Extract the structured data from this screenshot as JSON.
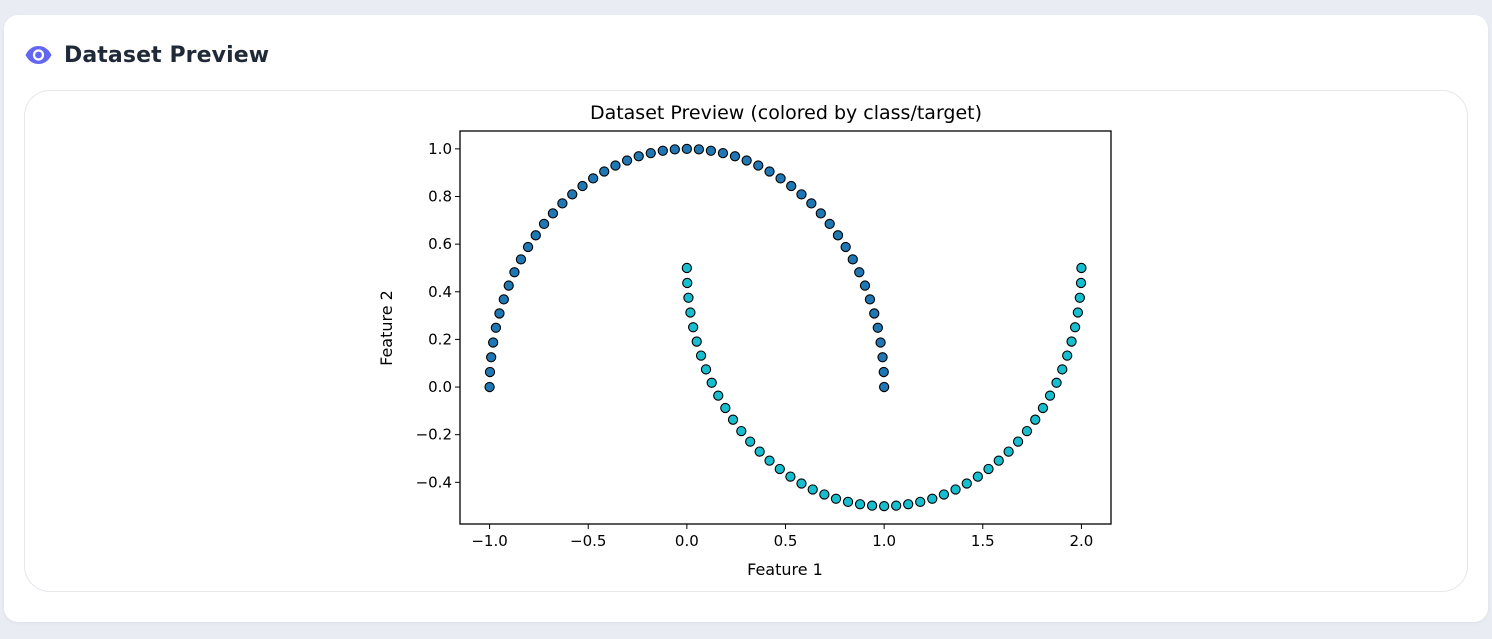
{
  "header": {
    "title": "Dataset Preview",
    "icon": "eye-icon",
    "icon_color": "#6366f1"
  },
  "chart_data": {
    "type": "scatter",
    "title": "Dataset Preview (colored by class/target)",
    "xlabel": "Feature 1",
    "ylabel": "Feature 2",
    "xlim": [
      -1.15,
      2.15
    ],
    "ylim": [
      -0.575,
      1.075
    ],
    "xticks": [
      -1.0,
      -0.5,
      0.0,
      0.5,
      1.0,
      1.5,
      2.0
    ],
    "xtick_labels": [
      "−1.0",
      "−0.5",
      "0.0",
      "0.5",
      "1.0",
      "1.5",
      "2.0"
    ],
    "yticks": [
      -0.4,
      -0.2,
      0.0,
      0.2,
      0.4,
      0.6,
      0.8,
      1.0
    ],
    "ytick_labels": [
      "−0.4",
      "−0.2",
      "0.0",
      "0.2",
      "0.4",
      "0.6",
      "0.8",
      "1.0"
    ],
    "grid": false,
    "legend": false,
    "colors": {
      "class_0": "#1f77b4",
      "class_1": "#17becf",
      "marker_edge": "#000000"
    },
    "series": [
      {
        "x": [
          1.0,
          0.998,
          0.992,
          0.982,
          0.968,
          0.95,
          0.928,
          0.903,
          0.874,
          0.841,
          0.805,
          0.766,
          0.724,
          0.679,
          0.631,
          0.581,
          0.529,
          0.475,
          0.419,
          0.362,
          0.303,
          0.244,
          0.183,
          0.122,
          0.061,
          0.0,
          -0.061,
          -0.122,
          -0.183,
          -0.244,
          -0.303,
          -0.362,
          -0.419,
          -0.475,
          -0.529,
          -0.581,
          -0.631,
          -0.679,
          -0.724,
          -0.766,
          -0.805,
          -0.841,
          -0.874,
          -0.903,
          -0.928,
          -0.95,
          -0.968,
          -0.982,
          -0.992,
          -0.998,
          -1.0
        ],
        "y": [
          0.0,
          0.063,
          0.125,
          0.187,
          0.249,
          0.309,
          0.368,
          0.426,
          0.482,
          0.536,
          0.588,
          0.637,
          0.685,
          0.729,
          0.771,
          0.809,
          0.844,
          0.876,
          0.905,
          0.93,
          0.951,
          0.969,
          0.982,
          0.992,
          0.998,
          1.0,
          0.998,
          0.992,
          0.982,
          0.969,
          0.951,
          0.93,
          0.905,
          0.876,
          0.844,
          0.809,
          0.771,
          0.729,
          0.685,
          0.637,
          0.588,
          0.536,
          0.482,
          0.426,
          0.368,
          0.309,
          0.249,
          0.187,
          0.125,
          0.063,
          0.0
        ]
      },
      {
        "x": [
          0.0,
          0.002,
          0.008,
          0.018,
          0.032,
          0.05,
          0.072,
          0.097,
          0.126,
          0.159,
          0.195,
          0.234,
          0.276,
          0.321,
          0.369,
          0.419,
          0.471,
          0.525,
          0.581,
          0.638,
          0.697,
          0.756,
          0.817,
          0.878,
          0.939,
          1.0,
          1.061,
          1.122,
          1.183,
          1.244,
          1.303,
          1.362,
          1.419,
          1.475,
          1.529,
          1.581,
          1.631,
          1.679,
          1.724,
          1.766,
          1.805,
          1.841,
          1.874,
          1.903,
          1.928,
          1.95,
          1.968,
          1.982,
          1.992,
          1.998,
          2.0
        ],
        "y": [
          0.5,
          0.437,
          0.375,
          0.313,
          0.251,
          0.191,
          0.132,
          0.074,
          0.018,
          -0.036,
          -0.088,
          -0.137,
          -0.185,
          -0.229,
          -0.271,
          -0.309,
          -0.344,
          -0.376,
          -0.405,
          -0.43,
          -0.451,
          -0.469,
          -0.482,
          -0.492,
          -0.498,
          -0.5,
          -0.498,
          -0.492,
          -0.482,
          -0.469,
          -0.451,
          -0.43,
          -0.405,
          -0.376,
          -0.344,
          -0.309,
          -0.271,
          -0.229,
          -0.185,
          -0.137,
          -0.088,
          -0.036,
          0.018,
          0.074,
          0.132,
          0.191,
          0.251,
          0.313,
          0.375,
          0.437,
          0.5
        ]
      }
    ]
  }
}
